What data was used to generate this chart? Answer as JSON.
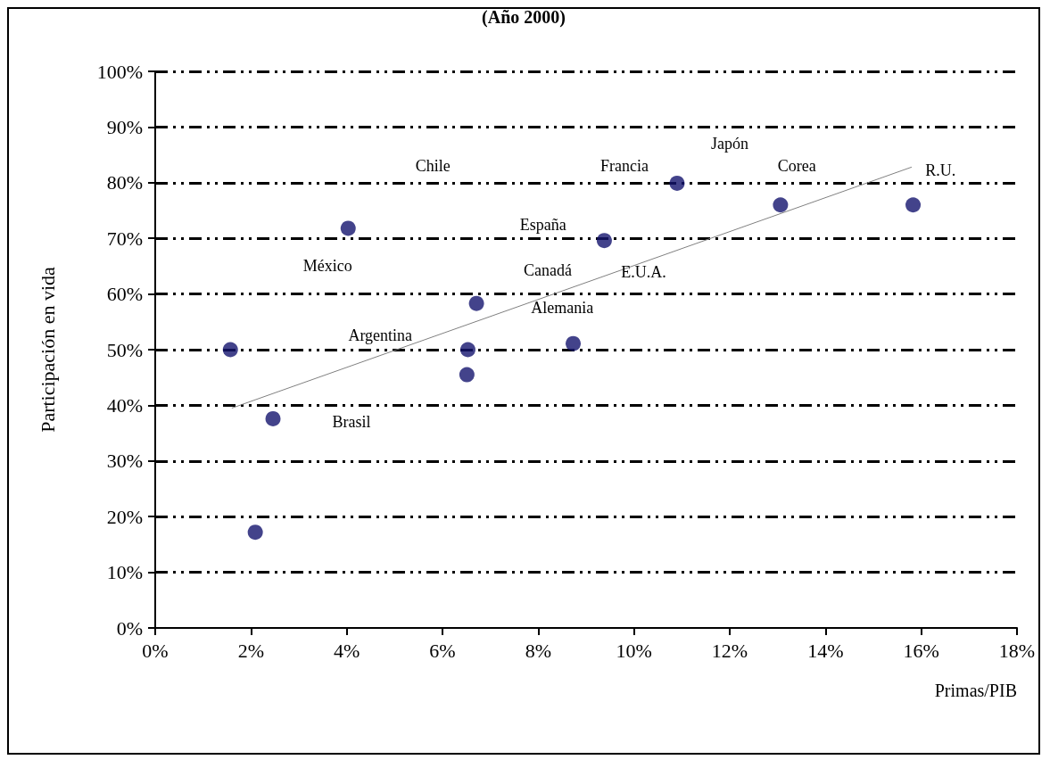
{
  "chart_data": {
    "type": "scatter",
    "title": "(Año 2000)",
    "xlabel": "Primas/PIB",
    "ylabel": "Participación en vida",
    "x": [
      1.57,
      2.46,
      2.09,
      4.03,
      6.53,
      6.51,
      6.71,
      8.73,
      9.38,
      10.9,
      13.06,
      15.83
    ],
    "series": [
      {
        "color": "#14146e",
        "values": [
          50.0,
          37.6,
          17.2,
          71.8,
          50.0,
          45.5,
          58.3,
          51.1,
          69.6,
          79.9,
          76.0,
          76.0
        ]
      },
      {
        "type": "line",
        "color": "#808080",
        "x": [
          1.6,
          15.8
        ],
        "values": [
          39.5,
          82.8
        ],
        "marker": "none"
      }
    ],
    "xlim": [
      0,
      18
    ],
    "xticks": [
      {
        "value": 0,
        "label": "0%"
      },
      {
        "value": 2,
        "label": "2%"
      },
      {
        "value": 4,
        "label": "4%"
      },
      {
        "value": 6,
        "label": "6%"
      },
      {
        "value": 8,
        "label": "8%"
      },
      {
        "value": 10,
        "label": "10%"
      },
      {
        "value": 12,
        "label": "12%"
      },
      {
        "value": 14,
        "label": "14%"
      },
      {
        "value": 16,
        "label": "16%"
      },
      {
        "value": 18,
        "label": "18%"
      }
    ],
    "ylim": [
      0,
      100
    ],
    "yticks": [
      {
        "value": 0,
        "label": "0%"
      },
      {
        "value": 10,
        "label": "10%"
      },
      {
        "value": 20,
        "label": "20%"
      },
      {
        "value": 30,
        "label": "30%"
      },
      {
        "value": 40,
        "label": "40%"
      },
      {
        "value": 50,
        "label": "50%"
      },
      {
        "value": 60,
        "label": "60%"
      },
      {
        "value": 70,
        "label": "70%"
      },
      {
        "value": 80,
        "label": "80%"
      },
      {
        "value": 90,
        "label": "90%"
      },
      {
        "value": 100,
        "label": "100%"
      }
    ],
    "grid": "y",
    "marker": "circle",
    "annotations": [
      "Chile",
      "México",
      "España",
      "Canadá",
      "E.U.A.",
      "Alemania",
      "Argentina",
      "Brasil",
      "Francia",
      "Japón",
      "Corea",
      "R.U."
    ]
  }
}
